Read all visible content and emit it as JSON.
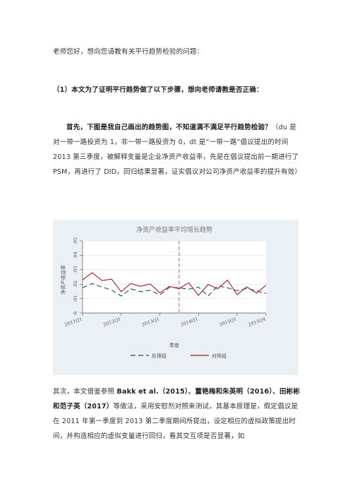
{
  "doc": {
    "greeting": "老师您好，想向您请教有关平行趋势检验的问题：",
    "question_heading": "（1）本文为了证明平行趋势做了以下步骤，想向老师请教是否正确：",
    "para1_bold": "首先，下图是我自己画出的趋势图，不知道满不满足平行趋势检验？",
    "para1_rest": "（du 是对一带一路投资为 1，非一带一路投资为 0，dt 是“一带一路”倡议提出的时间 2013 第三季度，被解释变量是企业净资产收益率，先是在倡议提出前一期进行了 PSM，再进行了 DID，回归结果显著，证实倡议对公司净资产收益率的提升有效）",
    "para2_a": "其次，本文借鉴参照 ",
    "para2_ref1": "Bakk et al.（2015）、董艳梅和朱英明（2016）、田彬彬和范子英（2017）",
    "para2_b": "等做法，采用安慰剂对照来测试，其基本原理是，假定倡议是在 2011 年第一季度到 2013 第二季度期间所提出，设定相应的虚拟政策提出时间，并构造相应的虚拟变量进行回归，看其交互项是否显著，如"
  },
  "chart_data": {
    "type": "line",
    "title": "净资产收益率平均增长趋势",
    "xlabel": "季度",
    "ylabel": "净资产收益率",
    "ylim": [
      0,
      0.05
    ],
    "yticks": [
      "0",
      ".01",
      ".02",
      ".03",
      ".04",
      ".05"
    ],
    "x_tick_labels": [
      "2011Q1",
      "2012Q1",
      "2013Q1",
      "2014Q1",
      "2015Q1",
      "2015Q4"
    ],
    "x_tick_index": [
      0,
      4,
      8,
      12,
      16,
      19
    ],
    "vline_index": 10,
    "grid": true,
    "legend_position": "bottom",
    "series": [
      {
        "name": "处理组",
        "color": "#1f4e79",
        "dash": "7,4",
        "values": [
          0.0175,
          0.0205,
          0.018,
          0.016,
          0.0118,
          0.0168,
          0.0148,
          0.0158,
          0.0125,
          0.0178,
          0.0175,
          0.0165,
          0.018,
          0.0118,
          0.0188,
          0.0175,
          0.0155,
          0.017,
          0.0155,
          0.0135
        ]
      },
      {
        "name": "对照组",
        "color": "#a8192e",
        "dash": "",
        "values": [
          0.023,
          0.028,
          0.0225,
          0.0235,
          0.0148,
          0.0205,
          0.0185,
          0.0202,
          0.014,
          0.0185,
          0.0168,
          0.021,
          0.0122,
          0.0198,
          0.0168,
          0.0228,
          0.0128,
          0.0182,
          0.0138,
          0.0192
        ]
      }
    ]
  }
}
